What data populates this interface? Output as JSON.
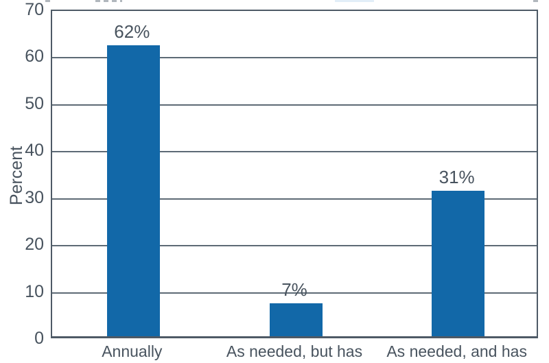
{
  "chart_data": {
    "type": "bar",
    "title": "",
    "categories": [
      "Annually",
      "As needed, but has",
      "As needed, and has"
    ],
    "values": [
      62,
      7,
      31
    ],
    "value_labels": [
      "62%",
      "7%",
      "31%"
    ],
    "xlabel": "",
    "ylabel": "Percent",
    "ylim": [
      0,
      70
    ],
    "yticks": [
      0,
      10,
      20,
      30,
      40,
      50,
      60,
      70
    ],
    "grid": "horizontal gridlines at every 10, bars drawn over gridlines",
    "legend": "none",
    "bar_color": "#1268a8",
    "axis_border_color": "#4e5a66",
    "gridline_color": "#5d6a75",
    "text_color": "#48535e"
  }
}
